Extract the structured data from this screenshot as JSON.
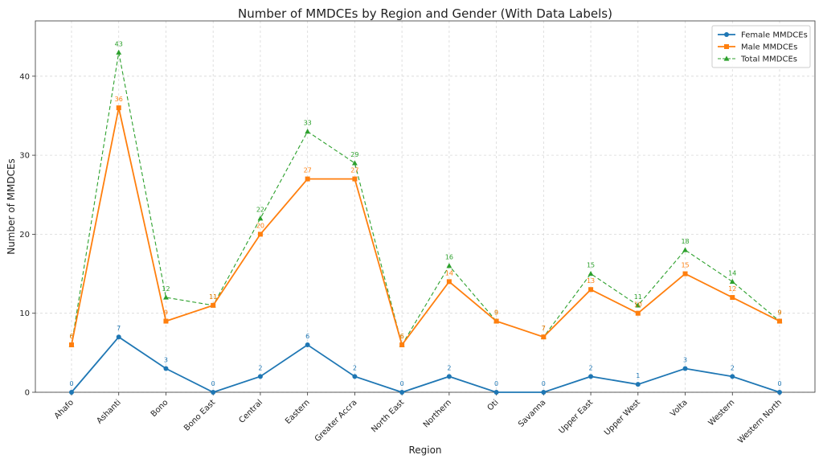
{
  "chart_data": {
    "type": "line",
    "title": "Number of MMDCEs by Region and Gender (With Data Labels)",
    "xlabel": "Region",
    "ylabel": "Number of MMDCEs",
    "categories": [
      "Ahafo",
      "Ashanti",
      "Bono",
      "Bono East",
      "Central",
      "Eastern",
      "Greater Accra",
      "North East",
      "Northern",
      "Oti",
      "Savanna",
      "Upper East",
      "Upper West",
      "Volta",
      "Western",
      "Western North"
    ],
    "ylim": [
      0,
      47
    ],
    "yticks": [
      0,
      10,
      20,
      30,
      40
    ],
    "grid": true,
    "legend_position": "top-right",
    "series": [
      {
        "name": "Female MMDCEs",
        "values": [
          0,
          7,
          3,
          0,
          2,
          6,
          2,
          0,
          2,
          0,
          0,
          2,
          1,
          3,
          2,
          0
        ],
        "color": "#1f77b4",
        "marker": "circle",
        "line_style": "solid"
      },
      {
        "name": "Male MMDCEs",
        "values": [
          6,
          36,
          9,
          11,
          20,
          27,
          27,
          6,
          14,
          9,
          7,
          13,
          10,
          15,
          12,
          9
        ],
        "color": "#ff7f0e",
        "marker": "square",
        "line_style": "solid"
      },
      {
        "name": "Total MMDCEs",
        "values": [
          6,
          43,
          12,
          11,
          22,
          33,
          29,
          6,
          16,
          9,
          7,
          15,
          11,
          18,
          14,
          9
        ],
        "color": "#2ca02c",
        "marker": "triangle",
        "line_style": "dashed"
      }
    ]
  }
}
